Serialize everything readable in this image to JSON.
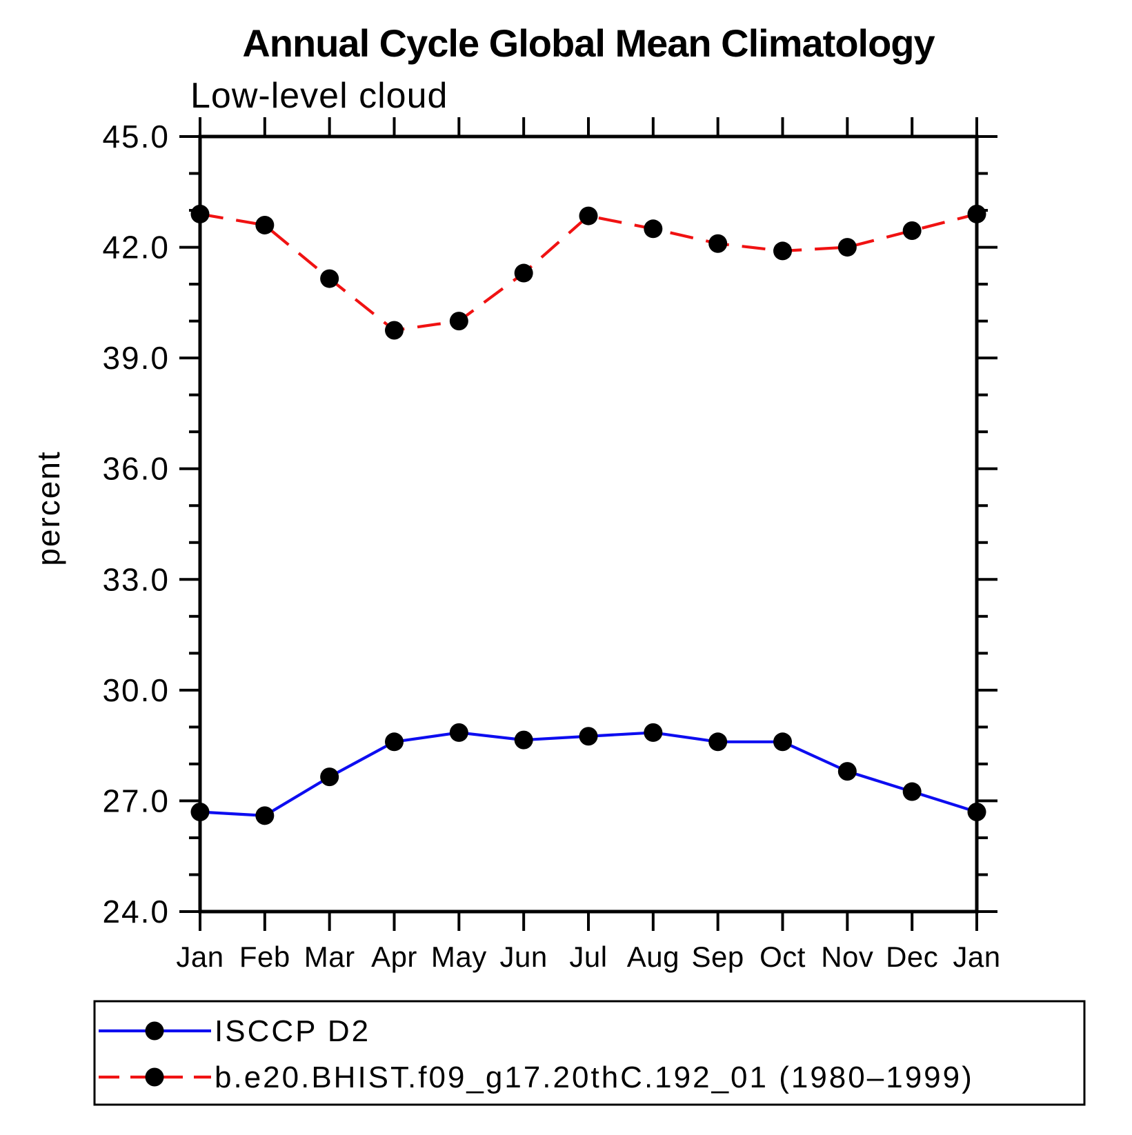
{
  "page": {
    "background_color": "#ffffff"
  },
  "chart_data": {
    "type": "line",
    "title": "Annual Cycle Global Mean Climatology",
    "subtitle": "Low-level cloud",
    "xlabel": "",
    "ylabel": "percent",
    "categories": [
      "Jan",
      "Feb",
      "Mar",
      "Apr",
      "May",
      "Jun",
      "Jul",
      "Aug",
      "Sep",
      "Oct",
      "Nov",
      "Dec",
      "Jan"
    ],
    "y_axis": {
      "label": "percent",
      "min": 24.0,
      "max": 45.0,
      "major_tick_step": 3.0,
      "minor_tick_step": 1.0,
      "tick_labels": [
        "24.0",
        "27.0",
        "30.0",
        "33.0",
        "36.0",
        "39.0",
        "42.0",
        "45.0"
      ]
    },
    "grid": false,
    "legend_position": "bottom",
    "marker": {
      "shape": "filled-circle",
      "color": "#000000"
    },
    "series": [
      {
        "name": "ISCCP D2",
        "color": "#0d0df0",
        "line_style": "solid",
        "values": [
          26.7,
          26.6,
          27.65,
          28.6,
          28.85,
          28.65,
          28.75,
          28.85,
          28.6,
          28.6,
          27.8,
          27.25,
          26.7
        ]
      },
      {
        "name": "b.e20.BHIST.f09_g17.20thC.192_01 (1980–1999)",
        "color": "#f01212",
        "line_style": "dashed",
        "values": [
          42.9,
          42.6,
          41.15,
          39.75,
          40.0,
          41.3,
          42.85,
          42.5,
          42.1,
          41.9,
          42.0,
          42.45,
          42.9
        ]
      }
    ]
  }
}
